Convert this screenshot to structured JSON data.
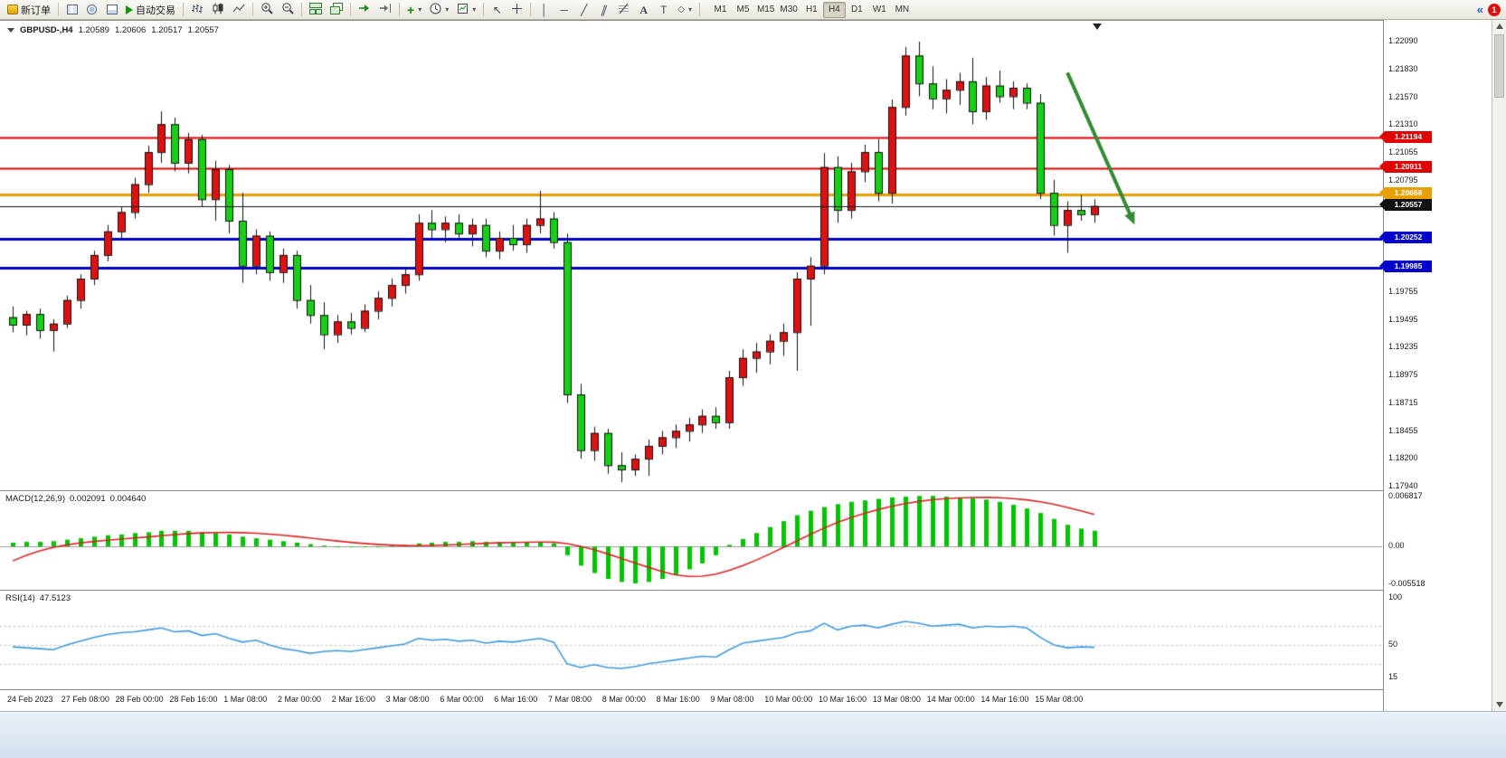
{
  "toolbar": {
    "new_order": "新订单",
    "auto_trading": "自动交易",
    "timeframes": [
      "M1",
      "M5",
      "M15",
      "M30",
      "H1",
      "H4",
      "D1",
      "W1",
      "MN"
    ],
    "active_timeframe": "H4",
    "notification_count": "1"
  },
  "chart": {
    "symbol_period": "GBPUSD-,H4",
    "ohlc": [
      "1.20589",
      "1.20606",
      "1.20517",
      "1.20557"
    ],
    "price_axis_labels": [
      {
        "text": "1.22090",
        "value": 1.2209
      },
      {
        "text": "1.21830",
        "value": 1.2183
      },
      {
        "text": "1.21570",
        "value": 1.2157
      },
      {
        "text": "1.21310",
        "value": 1.2131
      },
      {
        "text": "1.21055",
        "value": 1.21055
      },
      {
        "text": "1.20795",
        "value": 1.20795
      },
      {
        "text": "1.19755",
        "value": 1.19755
      },
      {
        "text": "1.19495",
        "value": 1.19495
      },
      {
        "text": "1.19235",
        "value": 1.19235
      },
      {
        "text": "1.18975",
        "value": 1.18975
      },
      {
        "text": "1.18715",
        "value": 1.18715
      },
      {
        "text": "1.18455",
        "value": 1.18455
      },
      {
        "text": "1.18200",
        "value": 1.182
      },
      {
        "text": "1.17940",
        "value": 1.1794
      }
    ],
    "levels": [
      {
        "label": "1.21194",
        "value": 1.21194,
        "color": "#e00000",
        "width": 2,
        "current": false
      },
      {
        "label": "1.20911",
        "value": 1.20911,
        "color": "#e00000",
        "width": 2,
        "current": false
      },
      {
        "label": "1.20668",
        "value": 1.20668,
        "color": "#e8a000",
        "width": 3,
        "current": false
      },
      {
        "label": "1.20557",
        "value": 1.20557,
        "color": "#111111",
        "width": 1,
        "current": true
      },
      {
        "label": "1.20252",
        "value": 1.20252,
        "color": "#0000cd",
        "width": 3,
        "current": false
      },
      {
        "label": "1.19985",
        "value": 1.19985,
        "color": "#0000cd",
        "width": 3,
        "current": false
      }
    ],
    "arrow": {
      "from_index": 78,
      "from_price": 1.218,
      "to_index": 82.7,
      "to_price": 1.2046,
      "color": "#338a33"
    }
  },
  "macd": {
    "name": "MACD(12,26,9)",
    "values": [
      "0.002091",
      "0.004640"
    ],
    "axis_labels": [
      {
        "text": "0.006817",
        "value": 0.006817
      },
      {
        "text": "0.00",
        "value": 0
      },
      {
        "text": "-0.005518",
        "value": -0.005518
      }
    ],
    "bar_color": "#00c400",
    "signal_color": "#dd2222"
  },
  "rsi": {
    "name": "RSI(14)",
    "value": "47.5123",
    "axis_labels": [
      {
        "text": "100",
        "value": 100
      },
      {
        "text": "50",
        "value": 50
      },
      {
        "text": "15",
        "value": 15
      }
    ],
    "line_color": "#3e9ade",
    "levels": [
      70,
      50,
      30
    ]
  },
  "time_axis": [
    "24 Feb 2023",
    "27 Feb 08:00",
    "28 Feb 00:00",
    "28 Feb 16:00",
    "1 Mar 08:00",
    "2 Mar 00:00",
    "2 Mar 16:00",
    "3 Mar 08:00",
    "6 Mar 00:00",
    "6 Mar 16:00",
    "7 Mar 08:00",
    "8 Mar 00:00",
    "8 Mar 16:00",
    "9 Mar 08:00",
    "10 Mar 00:00",
    "10 Mar 16:00",
    "13 Mar 08:00",
    "14 Mar 00:00",
    "14 Mar 16:00",
    "15 Mar 08:00"
  ],
  "chart_data": {
    "type": "candlestick",
    "symbol": "GBPUSD",
    "period": "H4",
    "color_convention": "red=bullish, green=bearish",
    "up_color": "#dd1111",
    "down_color": "#16cf16",
    "ylim": [
      1.1794,
      1.2209
    ],
    "candles": [
      [
        1.1952,
        1.1962,
        1.1938,
        1.1945
      ],
      [
        1.1945,
        1.1958,
        1.1935,
        1.1955
      ],
      [
        1.1955,
        1.196,
        1.1932,
        1.194
      ],
      [
        1.194,
        1.195,
        1.192,
        1.1946
      ],
      [
        1.1946,
        1.1972,
        1.1942,
        1.1968
      ],
      [
        1.1968,
        1.1992,
        1.196,
        1.1988
      ],
      [
        1.1988,
        1.2014,
        1.1982,
        1.201
      ],
      [
        1.201,
        1.2038,
        1.2004,
        1.2032
      ],
      [
        1.2032,
        1.2055,
        1.2026,
        1.205
      ],
      [
        1.205,
        1.2082,
        1.2044,
        1.2076
      ],
      [
        1.2076,
        1.2112,
        1.2068,
        1.2106
      ],
      [
        1.2106,
        1.2144,
        1.2096,
        1.2132
      ],
      [
        1.2132,
        1.2138,
        1.2088,
        1.2096
      ],
      [
        1.2096,
        1.2124,
        1.2086,
        1.2118
      ],
      [
        1.2118,
        1.2122,
        1.2055,
        1.2062
      ],
      [
        1.2062,
        1.2098,
        1.2042,
        1.209
      ],
      [
        1.209,
        1.2094,
        1.203,
        1.2042
      ],
      [
        1.2042,
        1.2068,
        1.1984,
        1.2
      ],
      [
        1.2,
        1.2034,
        1.1992,
        1.2028
      ],
      [
        1.2028,
        1.2032,
        1.1986,
        1.1994
      ],
      [
        1.1994,
        1.2016,
        1.1984,
        1.201
      ],
      [
        1.201,
        1.2014,
        1.196,
        1.1968
      ],
      [
        1.1968,
        1.1982,
        1.1946,
        1.1954
      ],
      [
        1.1954,
        1.1966,
        1.1922,
        1.1936
      ],
      [
        1.1936,
        1.1954,
        1.1928,
        1.1948
      ],
      [
        1.1948,
        1.1956,
        1.1936,
        1.1942
      ],
      [
        1.1942,
        1.1964,
        1.1938,
        1.1958
      ],
      [
        1.1958,
        1.1976,
        1.195,
        1.197
      ],
      [
        1.197,
        1.1988,
        1.1962,
        1.1982
      ],
      [
        1.1982,
        1.1998,
        1.1974,
        1.1992
      ],
      [
        1.1992,
        1.2048,
        1.1986,
        1.204
      ],
      [
        1.204,
        1.2052,
        1.2026,
        1.2034
      ],
      [
        1.2034,
        1.2046,
        1.2022,
        1.204
      ],
      [
        1.204,
        1.2048,
        1.2024,
        1.203
      ],
      [
        1.203,
        1.2044,
        1.2018,
        1.2038
      ],
      [
        1.2038,
        1.2044,
        1.2008,
        1.2014
      ],
      [
        1.2014,
        1.2032,
        1.2006,
        1.2026
      ],
      [
        1.2026,
        1.2038,
        1.2014,
        1.202
      ],
      [
        1.202,
        1.2044,
        1.2012,
        1.2038
      ],
      [
        1.2038,
        1.207,
        1.203,
        1.2044
      ],
      [
        1.2044,
        1.205,
        1.2016,
        1.2022
      ],
      [
        1.2022,
        1.203,
        1.1872,
        1.188
      ],
      [
        1.188,
        1.189,
        1.182,
        1.1828
      ],
      [
        1.1828,
        1.185,
        1.1818,
        1.1844
      ],
      [
        1.1844,
        1.1848,
        1.1806,
        1.1814
      ],
      [
        1.1814,
        1.1826,
        1.1798,
        1.181
      ],
      [
        1.181,
        1.1824,
        1.1804,
        1.182
      ],
      [
        1.182,
        1.1838,
        1.1804,
        1.1832
      ],
      [
        1.1832,
        1.1846,
        1.1824,
        1.184
      ],
      [
        1.184,
        1.1852,
        1.183,
        1.1846
      ],
      [
        1.1846,
        1.1858,
        1.1836,
        1.1852
      ],
      [
        1.1852,
        1.1866,
        1.1844,
        1.186
      ],
      [
        1.186,
        1.1868,
        1.1848,
        1.1854
      ],
      [
        1.1854,
        1.1902,
        1.1848,
        1.1896
      ],
      [
        1.1896,
        1.1922,
        1.1888,
        1.1914
      ],
      [
        1.1914,
        1.1928,
        1.19,
        1.192
      ],
      [
        1.192,
        1.1936,
        1.1908,
        1.193
      ],
      [
        1.193,
        1.1946,
        1.1916,
        1.1938
      ],
      [
        1.1938,
        1.1994,
        1.1902,
        1.1988
      ],
      [
        1.1988,
        1.2008,
        1.1944,
        1.2
      ],
      [
        1.2,
        1.2105,
        1.1992,
        1.2092
      ],
      [
        1.2092,
        1.2102,
        1.204,
        1.2052
      ],
      [
        1.2052,
        1.2096,
        1.2044,
        1.2088
      ],
      [
        1.2088,
        1.2113,
        1.2078,
        1.2106
      ],
      [
        1.2106,
        1.2118,
        1.206,
        1.2068
      ],
      [
        1.2068,
        1.2155,
        1.2058,
        1.2148
      ],
      [
        1.2148,
        1.2204,
        1.214,
        1.2196
      ],
      [
        1.2196,
        1.2209,
        1.2158,
        1.217
      ],
      [
        1.217,
        1.2186,
        1.2146,
        1.2156
      ],
      [
        1.2156,
        1.2174,
        1.2142,
        1.2164
      ],
      [
        1.2164,
        1.218,
        1.215,
        1.2172
      ],
      [
        1.2172,
        1.2194,
        1.2132,
        1.2144
      ],
      [
        1.2144,
        1.2176,
        1.2136,
        1.2168
      ],
      [
        1.2168,
        1.2182,
        1.2152,
        1.2158
      ],
      [
        1.2158,
        1.2172,
        1.2146,
        1.2166
      ],
      [
        1.2166,
        1.217,
        1.2146,
        1.2152
      ],
      [
        1.2152,
        1.216,
        1.2062,
        1.2068
      ],
      [
        1.2068,
        1.208,
        1.2028,
        1.2038
      ],
      [
        1.2038,
        1.206,
        1.2012,
        1.2052
      ],
      [
        1.2052,
        1.2066,
        1.2042,
        1.2048
      ],
      [
        1.2048,
        1.2062,
        1.204,
        1.20557
      ]
    ],
    "macd_histogram": [
      0.0005,
      0.0006,
      0.0006,
      0.0007,
      0.0009,
      0.0011,
      0.0013,
      0.0015,
      0.0016,
      0.0018,
      0.0019,
      0.0021,
      0.0021,
      0.0021,
      0.0019,
      0.0018,
      0.0016,
      0.0013,
      0.0011,
      0.0009,
      0.0007,
      0.0005,
      0.0003,
      0.0001,
      0.0,
      -0.0001,
      -0.0001,
      0.0,
      0.0001,
      0.0002,
      0.0004,
      0.0005,
      0.0006,
      0.0006,
      0.0007,
      0.0006,
      0.0006,
      0.0005,
      0.0005,
      0.0006,
      0.0004,
      -0.0012,
      -0.0026,
      -0.0036,
      -0.0044,
      -0.0048,
      -0.005,
      -0.0048,
      -0.0044,
      -0.0038,
      -0.0031,
      -0.0023,
      -0.0012,
      0.0002,
      0.001,
      0.0018,
      0.0026,
      0.0034,
      0.0042,
      0.0048,
      0.0053,
      0.0057,
      0.006,
      0.0062,
      0.0064,
      0.0066,
      0.0067,
      0.0068,
      0.0068,
      0.0067,
      0.0066,
      0.0065,
      0.0063,
      0.006,
      0.0056,
      0.0051,
      0.0045,
      0.0037,
      0.0029,
      0.0024,
      0.0021
    ],
    "macd_signal_seed": [
      -0.006,
      -0.005,
      -0.0035,
      -0.0022,
      -0.0012,
      -0.0005,
      0.0,
      0.0002
    ],
    "rsi_values": [
      48,
      47,
      46,
      45,
      50,
      54,
      58,
      61,
      63,
      64,
      66,
      68,
      64,
      65,
      60,
      62,
      57,
      53,
      55,
      50,
      46,
      44,
      41,
      43,
      44,
      43,
      45,
      47,
      49,
      51,
      57,
      55,
      56,
      54,
      55,
      52,
      54,
      53,
      55,
      57,
      53,
      30,
      26,
      29,
      26,
      25,
      27,
      30,
      32,
      34,
      36,
      38,
      37,
      45,
      52,
      54,
      56,
      58,
      63,
      65,
      73,
      66,
      70,
      71,
      68,
      72,
      75,
      73,
      70,
      71,
      72,
      68,
      70,
      69,
      70,
      68,
      58,
      50,
      47,
      48,
      47.5
    ]
  }
}
